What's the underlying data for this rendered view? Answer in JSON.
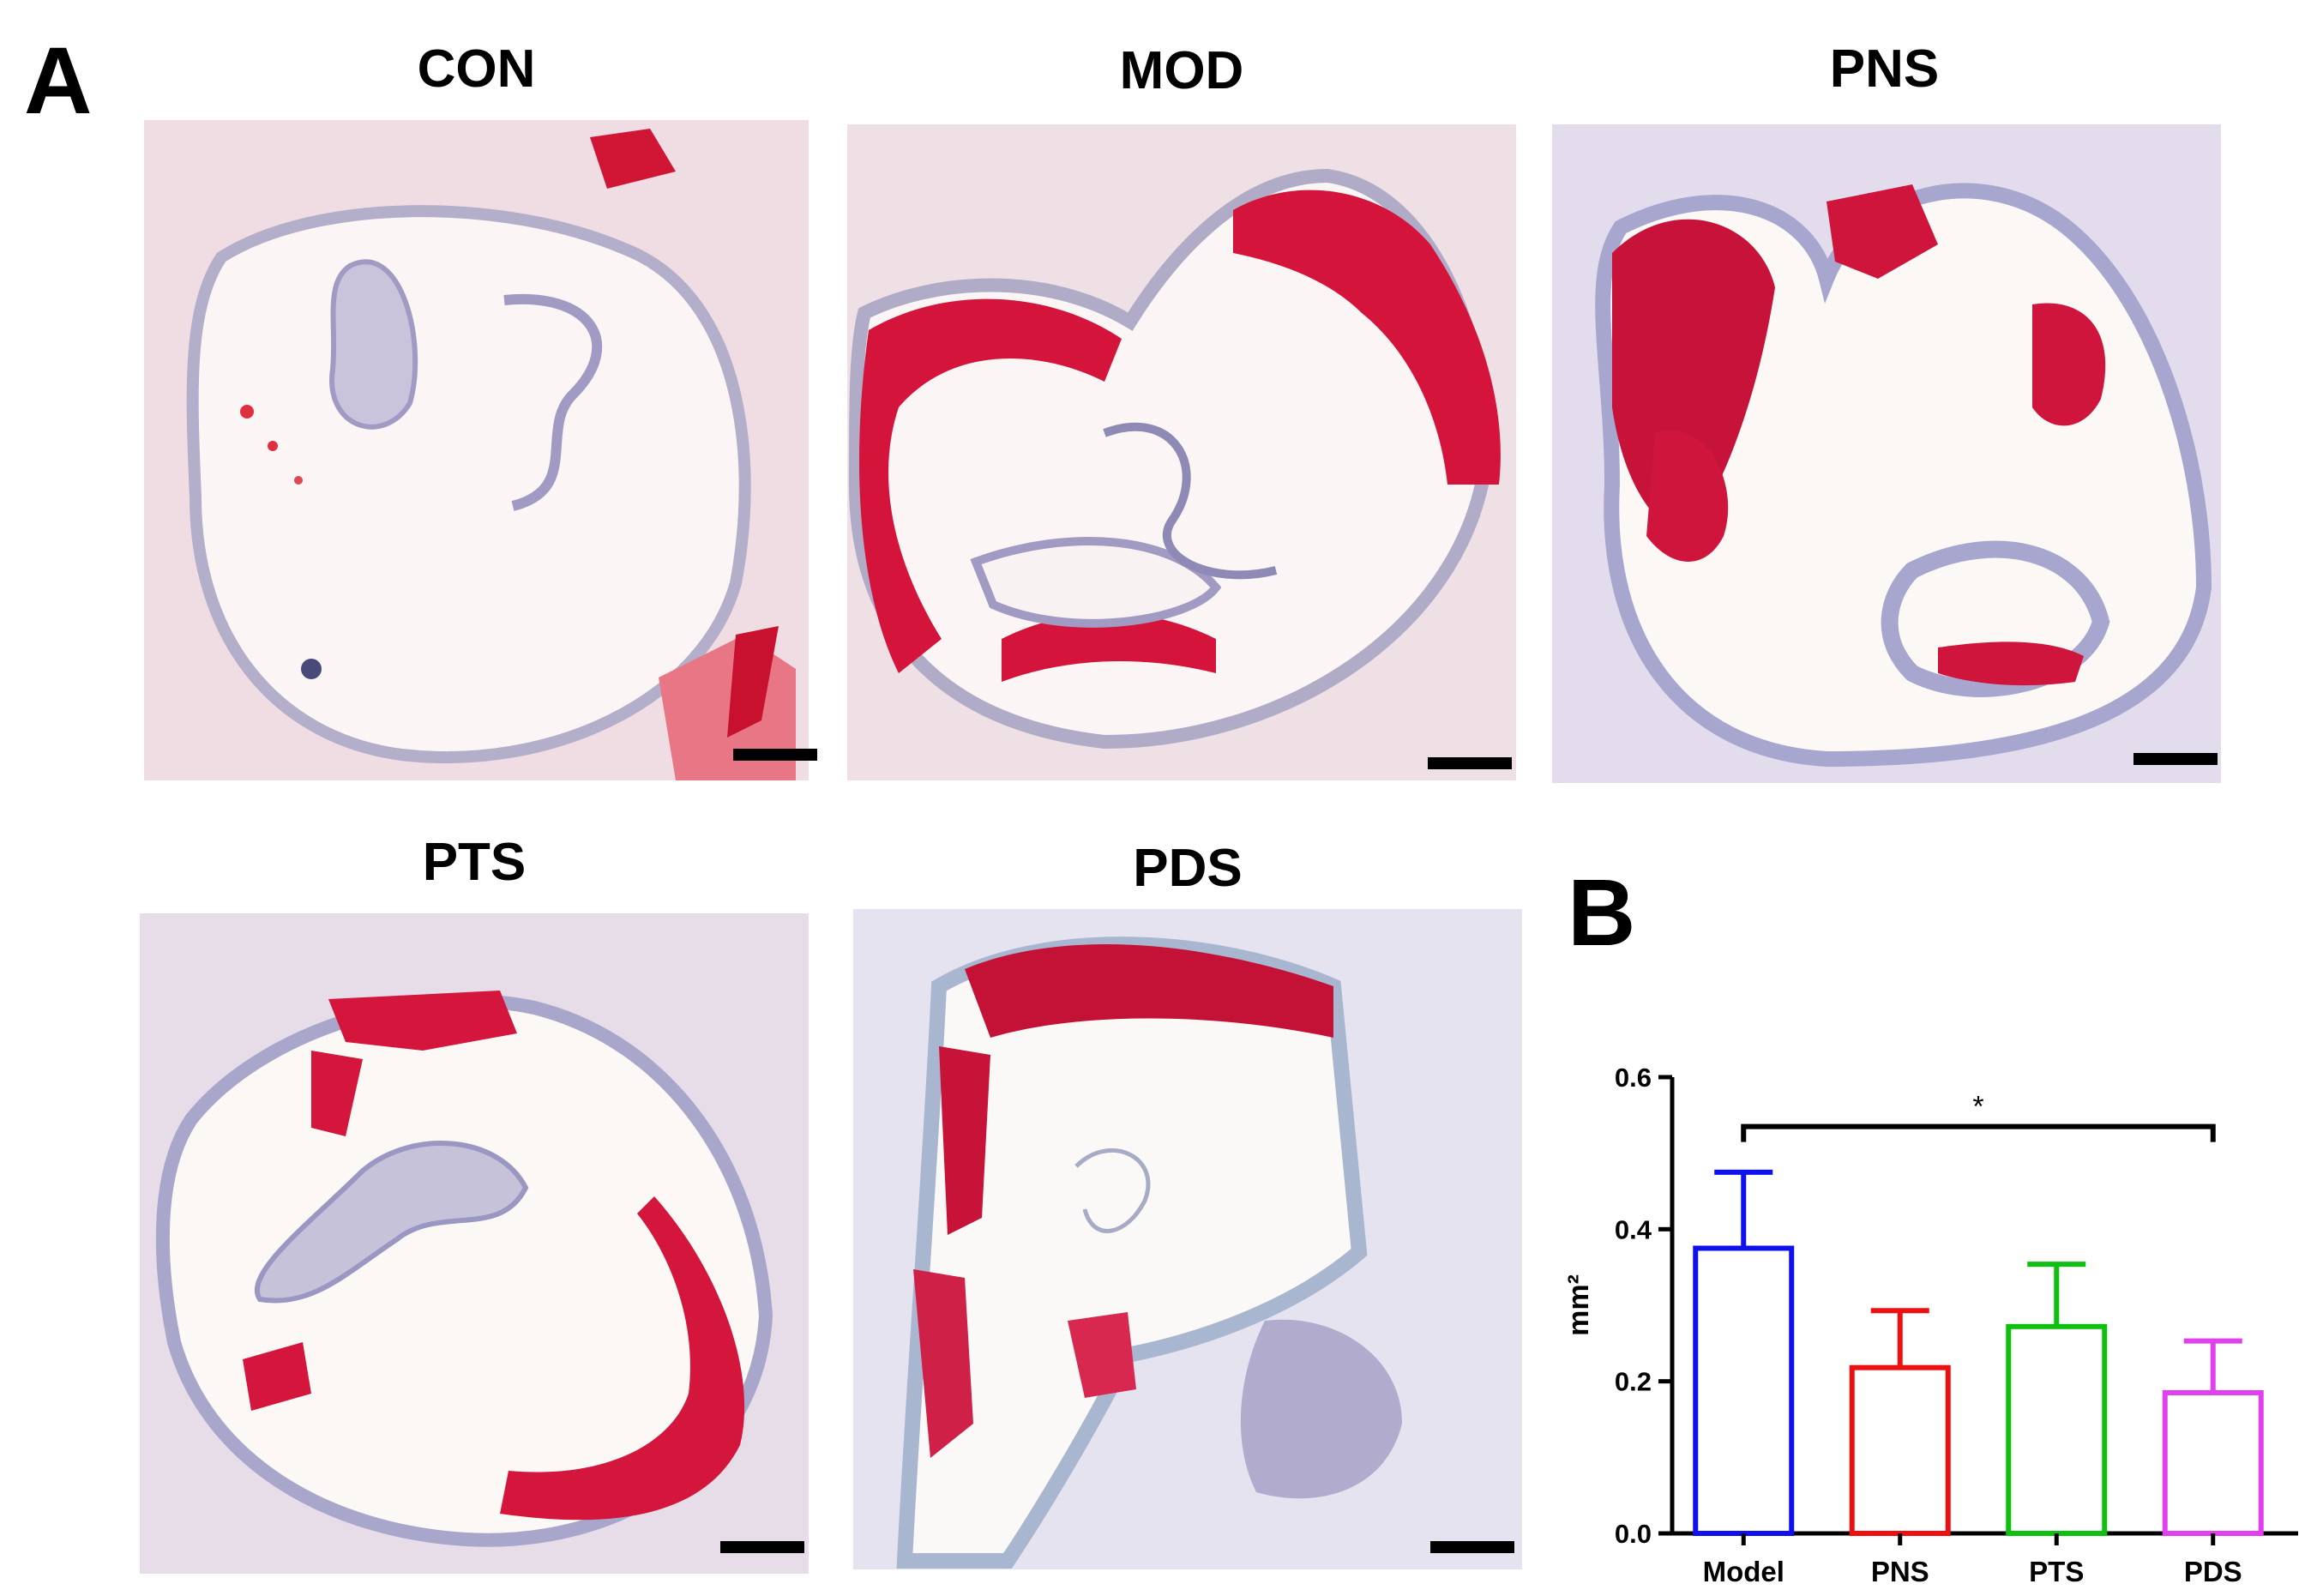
{
  "panels": {
    "a_letter": "A",
    "b_letter": "B"
  },
  "images": [
    {
      "title": "CON"
    },
    {
      "title": "MOD"
    },
    {
      "title": "PNS"
    },
    {
      "title": "PTS"
    },
    {
      "title": "PDS"
    }
  ],
  "colors": {
    "tissue": "#e9d3dc",
    "stroma": "#b9b8d6",
    "lipid": "#d6173f",
    "lumen": "#fdf7f6"
  },
  "chart_data": {
    "type": "bar",
    "categories": [
      "Model",
      "PNS",
      "PTS",
      "PDS"
    ],
    "series": [
      {
        "values": [
          0.375,
          0.218,
          0.272,
          0.185
        ],
        "errors": [
          0.1,
          0.075,
          0.082,
          0.068
        ]
      }
    ],
    "bar_colors": [
      "#1010ee",
      "#ee1010",
      "#10c010",
      "#e040ee"
    ],
    "ylabel": "mm²",
    "ylim": [
      0.0,
      0.6
    ],
    "yticks": [
      "0.0",
      "0.2",
      "0.4",
      "0.6"
    ],
    "annotation": {
      "from": "Model",
      "to": "PDS",
      "label": "*"
    },
    "grid": false,
    "legend": "none"
  }
}
